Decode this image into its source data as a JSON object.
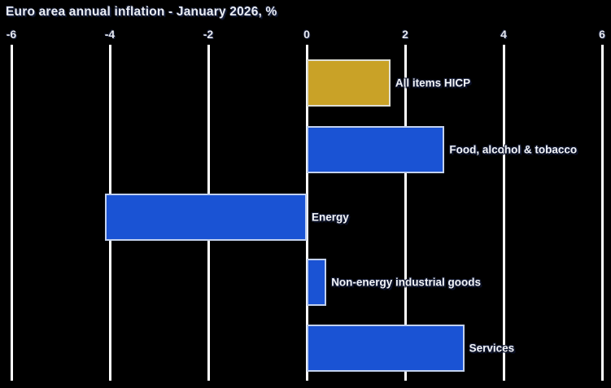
{
  "title": "Euro area annual inflation - January 2026, %",
  "colors": {
    "background": "#000000",
    "gridline": "#ffffff",
    "bar_blue": "#1a53d4",
    "bar_gold": "#c9a227",
    "bar_border": "#e1e7f2",
    "text": "#f2f4f8"
  },
  "chart_data": {
    "type": "bar",
    "orientation": "horizontal",
    "title": "Euro area annual inflation - January 2026, %",
    "categories": [
      "All items HICP",
      "Food, alcohol & tobacco",
      "Energy",
      "Non-energy industrial goods",
      "Services"
    ],
    "values": [
      1.7,
      2.8,
      -4.1,
      0.4,
      3.2
    ],
    "bar_colors": [
      "#c9a227",
      "#1a53d4",
      "#1a53d4",
      "#1a53d4",
      "#1a53d4"
    ],
    "xlabel": "",
    "ylabel": "",
    "xlim": [
      -6,
      6
    ],
    "xticks": [
      -6,
      -4,
      -2,
      0,
      2,
      4,
      6
    ],
    "grid": "vertical",
    "legend": "none",
    "value_labels": "category names shown right of each bar"
  }
}
